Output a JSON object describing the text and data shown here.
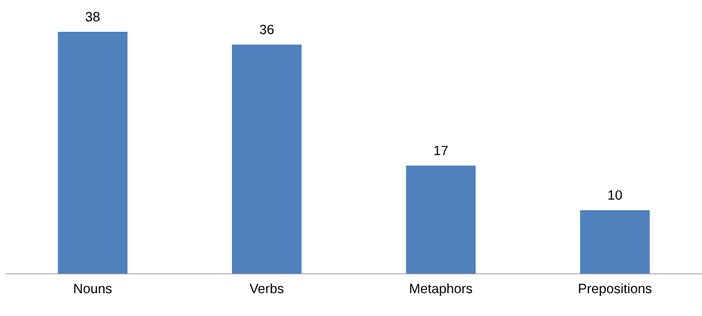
{
  "chart_data": {
    "type": "bar",
    "categories": [
      "Nouns",
      "Verbs",
      "Metaphors",
      "Prepositions"
    ],
    "values": [
      38,
      36,
      17,
      10
    ],
    "color": "#4f81bd",
    "data_labels": true,
    "grid": false,
    "legend": false
  }
}
